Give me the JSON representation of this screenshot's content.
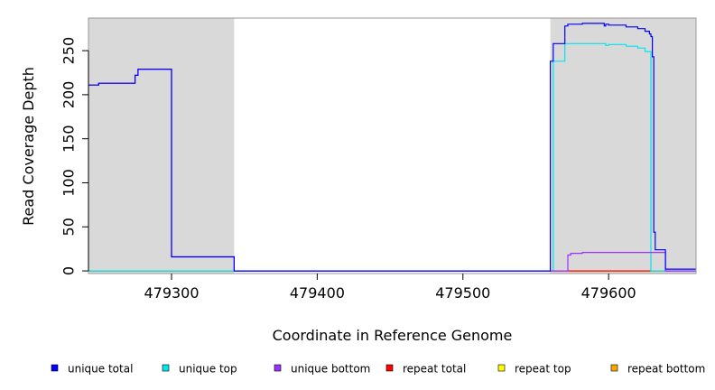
{
  "chart_data": {
    "type": "line",
    "title": "",
    "xlabel": "Coordinate in Reference Genome",
    "ylabel": "Read Coverage Depth",
    "xlim": [
      479243,
      479660
    ],
    "ylim": [
      -3,
      287
    ],
    "x_ticks": [
      479300,
      479400,
      479500,
      479600
    ],
    "y_ticks": [
      0,
      50,
      100,
      150,
      200,
      250
    ],
    "grid": false,
    "legend_position": "bottom",
    "shaded_regions": [
      {
        "x_start": 479243,
        "x_end": 479343,
        "color": "#d9d9d9"
      },
      {
        "x_start": 479560,
        "x_end": 479660,
        "color": "#d9d9d9"
      }
    ],
    "series": [
      {
        "name": "unique total",
        "color": "#0000ff",
        "x": [
          479243,
          479250,
          479250,
          479275,
          479275,
          479277,
          479277,
          479300,
          479300,
          479343,
          479343,
          479560,
          479560,
          479562,
          479562,
          479570,
          479570,
          479572,
          479572,
          479582,
          479582,
          479597,
          479597,
          479598,
          479598,
          479600,
          479600,
          479612,
          479612,
          479620,
          479620,
          479625,
          479625,
          479628,
          479628,
          479629,
          479629,
          479630,
          479630,
          479631,
          479631,
          479632,
          479632,
          479639,
          479639,
          479660
        ],
        "y": [
          211,
          211,
          213,
          213,
          222,
          222,
          229,
          229,
          16,
          16,
          0,
          0,
          238,
          238,
          258,
          258,
          278,
          278,
          280,
          280,
          281,
          281,
          278,
          278,
          280,
          280,
          279,
          279,
          277,
          277,
          275,
          275,
          272,
          272,
          269,
          269,
          266,
          266,
          243,
          243,
          44,
          44,
          24,
          24,
          2,
          2
        ]
      },
      {
        "name": "unique top",
        "color": "#00e5ee",
        "x": [
          479243,
          479300,
          479300,
          479343,
          479343,
          479560,
          479560,
          479562,
          479562,
          479570,
          479570,
          479598,
          479598,
          479600,
          479600,
          479612,
          479612,
          479620,
          479620,
          479625,
          479625,
          479629,
          479629,
          479660
        ],
        "y": [
          0,
          0,
          0,
          0,
          0,
          0,
          0,
          0,
          238,
          238,
          258,
          258,
          256,
          256,
          257,
          257,
          255,
          255,
          253,
          253,
          249,
          249,
          0,
          0
        ]
      },
      {
        "name": "unique bottom",
        "color": "#9b30ff",
        "x": [
          479243,
          479250,
          479250,
          479275,
          479275,
          479277,
          479277,
          479300,
          479300,
          479343,
          479343,
          479572,
          479572,
          479574,
          479574,
          479582,
          479582,
          479639,
          479639,
          479660
        ],
        "y": [
          211,
          211,
          213,
          213,
          222,
          222,
          229,
          229,
          16,
          16,
          0,
          0,
          18,
          18,
          20,
          20,
          21,
          21,
          0,
          0
        ]
      },
      {
        "name": "repeat total",
        "color": "#ff0000",
        "x": [
          479243,
          479660
        ],
        "y": [
          0,
          0
        ]
      },
      {
        "name": "repeat top",
        "color": "#ffff00",
        "x": [
          479243,
          479660
        ],
        "y": [
          0,
          0
        ]
      },
      {
        "name": "repeat bottom",
        "color": "#ffa500",
        "x": [
          479560,
          479639
        ],
        "y": [
          0,
          0
        ]
      }
    ]
  }
}
